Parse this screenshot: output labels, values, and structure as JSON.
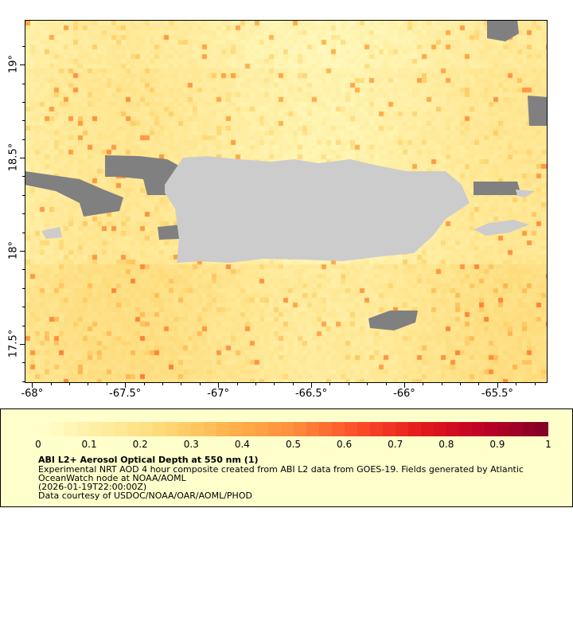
{
  "map": {
    "lon_range": [
      -68.04,
      -65.23
    ],
    "lat_range": [
      17.29,
      19.24
    ],
    "x_ticks": [
      "-68°",
      "-67.5°",
      "-67°",
      "-66.5°",
      "-66°",
      "-65.5°"
    ],
    "y_ticks": [
      "19°",
      "18.5°",
      "18°",
      "17.5°"
    ],
    "land_color": "#cccccc",
    "no_data_color": "#808080"
  },
  "legend": {
    "colorbar_min": 0,
    "colorbar_max": 1,
    "colorbar_labels": [
      "0",
      "0.1",
      "0.2",
      "0.3",
      "0.4",
      "0.5",
      "0.6",
      "0.7",
      "0.8",
      "0.9",
      "1"
    ],
    "colors": [
      "#ffffcc",
      "#ffeda0",
      "#fed976",
      "#feb24c",
      "#fd8d3c",
      "#fc4e2a",
      "#e31a1c",
      "#bd0026",
      "#800026"
    ],
    "title": "ABI L2+ Aerosol Optical Depth at 550 nm (1)",
    "line1": "Experimental NRT AOD 4 hour composite created from ABI L2 data from GOES-19. Fields generated by Atlantic",
    "line2": "OceanWatch node at NOAA/AOML",
    "line3": "(2026-01-19T22:00:00Z)",
    "line4": "Data courtesy of USDOC/NOAA/OAR/AOML/PHOD"
  }
}
